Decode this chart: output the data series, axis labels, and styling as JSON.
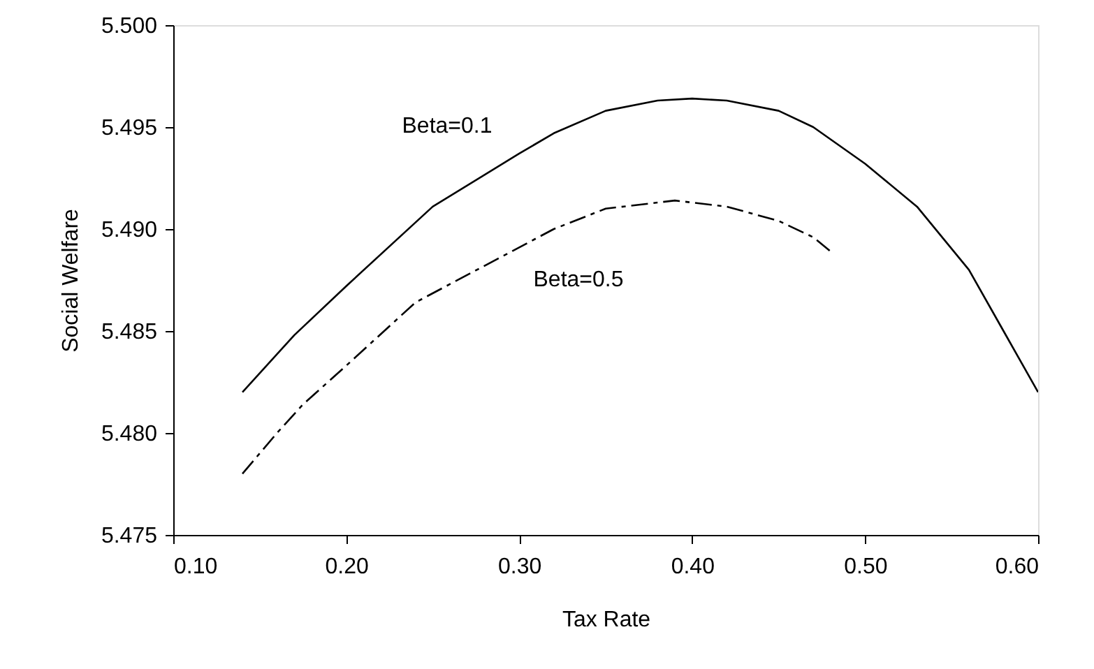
{
  "chart_data": {
    "type": "line",
    "xlabel": "Tax Rate",
    "ylabel": "Social Welfare",
    "xlim": [
      0.1,
      0.6
    ],
    "xticks": [
      {
        "value": 0.1,
        "label": "0.10"
      },
      {
        "value": 0.2,
        "label": "0.20"
      },
      {
        "value": 0.3,
        "label": "0.30"
      },
      {
        "value": 0.4,
        "label": "0.40"
      },
      {
        "value": 0.5,
        "label": "0.50"
      },
      {
        "value": 0.6,
        "label": "0.60"
      }
    ],
    "ylim": [
      5.475,
      5.5
    ],
    "yticks": [
      5.475,
      {
        "value": 5.48,
        "label": "5.480"
      },
      5.485,
      {
        "value": 5.49,
        "label": "5.490"
      },
      5.495,
      {
        "value": 5.5,
        "label": "5.500"
      }
    ],
    "grid": false,
    "marker": "none",
    "series": [
      {
        "name": "Beta=0.1",
        "color": "#000000",
        "line_style": "solid",
        "x": [
          0.14,
          0.17,
          0.2,
          0.25,
          0.3,
          0.32,
          0.35,
          0.38,
          0.4,
          0.42,
          0.45,
          0.47,
          0.5,
          0.53,
          0.56,
          0.58,
          0.6
        ],
        "values": [
          5.482,
          5.4848,
          5.4872,
          5.4911,
          5.4937,
          5.4947,
          5.4958,
          5.4963,
          5.4964,
          5.4963,
          5.4958,
          5.495,
          5.4932,
          5.4911,
          5.488,
          5.485,
          5.482
        ]
      },
      {
        "name": "Beta=0.5",
        "color": "#000000",
        "line_style": "dashed",
        "x": [
          0.14,
          0.16,
          0.175,
          0.2,
          0.24,
          0.28,
          0.32,
          0.35,
          0.39,
          0.42,
          0.45,
          0.47,
          0.48
        ],
        "values": [
          5.478,
          5.48,
          5.4814,
          5.4833,
          5.4864,
          5.4882,
          5.49,
          5.491,
          5.4914,
          5.4911,
          5.4904,
          5.4896,
          5.4889
        ]
      }
    ]
  }
}
